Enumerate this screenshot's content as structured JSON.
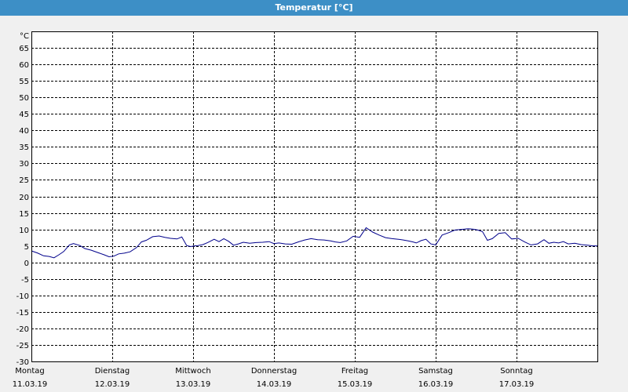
{
  "window": {
    "title": "Temperatur [°C]"
  },
  "chart_data": {
    "type": "line",
    "unit_label": "°C",
    "xlim": [
      0,
      7
    ],
    "ylim": [
      -30,
      70
    ],
    "y_ticks": [
      65,
      60,
      55,
      50,
      45,
      40,
      35,
      30,
      25,
      20,
      15,
      10,
      5,
      0,
      -5,
      -10,
      -15,
      -20,
      -25,
      -30
    ],
    "x_ticks": [
      {
        "day": "Montag",
        "date": "11.03.19",
        "x": 0
      },
      {
        "day": "Dienstag",
        "date": "12.03.19",
        "x": 1
      },
      {
        "day": "Mittwoch",
        "date": "13.03.19",
        "x": 2
      },
      {
        "day": "Donnerstag",
        "date": "14.03.19",
        "x": 3
      },
      {
        "day": "Freitag",
        "date": "15.03.19",
        "x": 4
      },
      {
        "day": "Samstag",
        "date": "16.03.19",
        "x": 5
      },
      {
        "day": "Sonntag",
        "date": "17.03.19",
        "x": 6
      }
    ],
    "grid": true,
    "series": [
      {
        "color": "#00008b",
        "x": [
          0,
          0.08,
          0.15,
          0.22,
          0.28,
          0.34,
          0.4,
          0.47,
          0.52,
          0.6,
          0.66,
          0.74,
          0.82,
          0.9,
          0.96,
          1.02,
          1.08,
          1.15,
          1.22,
          1.3,
          1.36,
          1.42,
          1.5,
          1.58,
          1.65,
          1.72,
          1.8,
          1.86,
          1.92,
          1.97,
          2.02,
          2.06,
          2.12,
          2.18,
          2.26,
          2.32,
          2.38,
          2.44,
          2.5,
          2.56,
          2.62,
          2.7,
          2.78,
          2.86,
          2.94,
          3.0,
          3.06,
          3.14,
          3.22,
          3.3,
          3.38,
          3.46,
          3.54,
          3.62,
          3.7,
          3.76,
          3.82,
          3.9,
          3.98,
          4.06,
          4.14,
          4.22,
          4.3,
          4.38,
          4.46,
          4.54,
          4.6,
          4.66,
          4.72,
          4.76,
          4.82,
          4.88,
          4.94,
          5.0,
          5.08,
          5.16,
          5.24,
          5.32,
          5.4,
          5.46,
          5.52,
          5.58,
          5.64,
          5.7,
          5.78,
          5.86,
          5.94,
          6.02,
          6.1,
          6.18,
          6.26,
          6.34,
          6.4,
          6.46,
          6.52,
          6.58,
          6.64,
          6.72,
          6.8,
          6.88,
          6.94,
          7.0
        ],
        "y": [
          3.5,
          2.8,
          2.0,
          1.8,
          1.4,
          2.3,
          3.3,
          5.3,
          5.7,
          5.1,
          4.2,
          3.7,
          3.0,
          2.3,
          1.7,
          1.9,
          2.6,
          2.8,
          3.2,
          4.5,
          6.2,
          6.7,
          7.8,
          8.0,
          7.6,
          7.3,
          7.1,
          7.7,
          5.1,
          4.8,
          5.0,
          5.1,
          5.4,
          6.0,
          7.0,
          6.3,
          7.2,
          6.4,
          5.2,
          5.6,
          6.1,
          5.8,
          6.0,
          6.1,
          6.3,
          5.7,
          5.9,
          5.6,
          5.5,
          6.2,
          6.8,
          7.2,
          6.9,
          6.8,
          6.5,
          6.2,
          6.0,
          6.5,
          7.9,
          7.6,
          10.5,
          9.2,
          8.3,
          7.5,
          7.2,
          7.0,
          6.8,
          6.5,
          6.2,
          5.9,
          6.6,
          7.0,
          5.6,
          5.3,
          8.3,
          9.0,
          9.8,
          10.0,
          10.2,
          10.1,
          9.8,
          9.3,
          6.7,
          7.2,
          8.8,
          9.0,
          7.1,
          7.3,
          6.2,
          5.3,
          5.6,
          6.9,
          5.8,
          6.1,
          5.9,
          6.3,
          5.6,
          5.8,
          5.4,
          5.2,
          5.0,
          5.0
        ]
      }
    ]
  }
}
